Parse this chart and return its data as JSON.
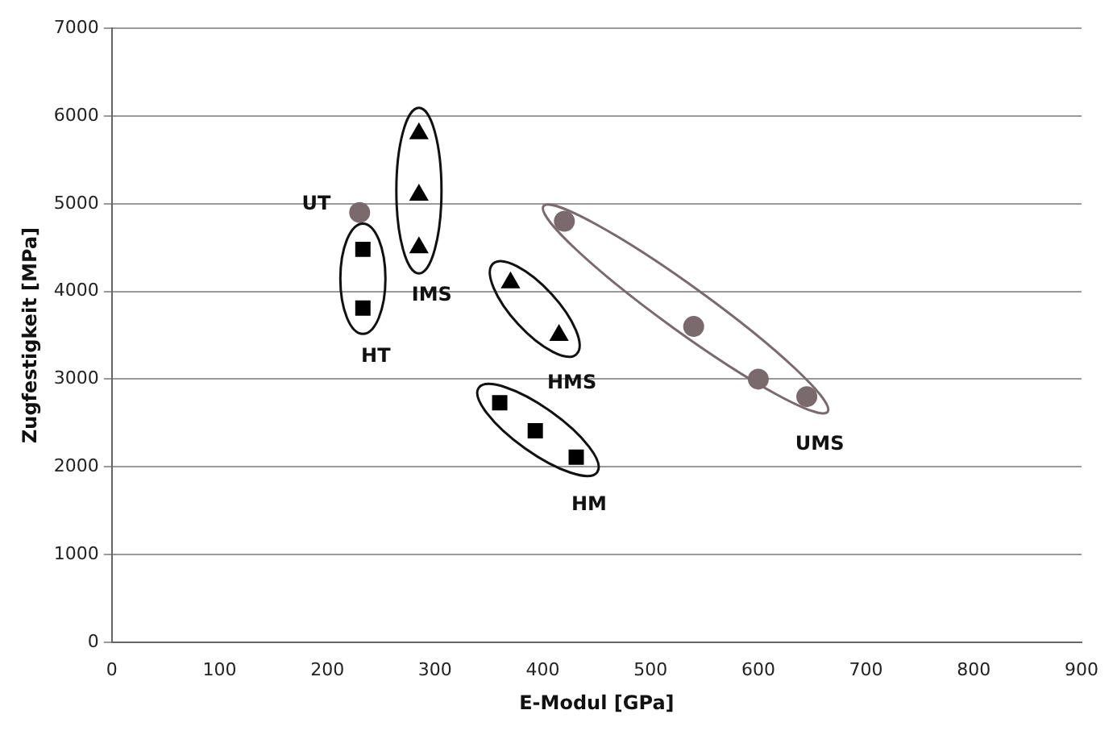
{
  "chart_data": {
    "type": "scatter",
    "xlabel": "E-Modul [GPa]",
    "ylabel": "Zugfestigkeit [MPa]",
    "xlim": [
      0,
      900
    ],
    "xticks": [
      0,
      100,
      200,
      300,
      400,
      500,
      600,
      700,
      800,
      900
    ],
    "ylim": [
      0,
      7000
    ],
    "yticks": [
      0,
      1000,
      2000,
      3000,
      4000,
      5000,
      6000,
      7000
    ],
    "grid": "y",
    "legend": false,
    "series": [
      {
        "name": "UT",
        "color": "#7a6a6e",
        "marker": "circle",
        "x": [
          230
        ],
        "values": [
          4900
        ]
      },
      {
        "name": "UMS",
        "color": "#7a6a6e",
        "marker": "circle",
        "x": [
          420,
          540,
          600,
          645
        ],
        "values": [
          4800,
          3600,
          3000,
          2800
        ]
      },
      {
        "name": "IMS",
        "color": "#000000",
        "marker": "triangle",
        "x": [
          285,
          285,
          285
        ],
        "values": [
          5800,
          5100,
          4500
        ]
      },
      {
        "name": "HMS",
        "color": "#000000",
        "marker": "triangle",
        "x": [
          370,
          415
        ],
        "values": [
          4100,
          3500
        ]
      },
      {
        "name": "HT",
        "color": "#000000",
        "marker": "square",
        "x": [
          233,
          233
        ],
        "values": [
          4480,
          3810
        ]
      },
      {
        "name": "HM",
        "color": "#000000",
        "marker": "square",
        "x": [
          360,
          393,
          431
        ],
        "values": [
          2730,
          2410,
          2110
        ]
      }
    ]
  }
}
